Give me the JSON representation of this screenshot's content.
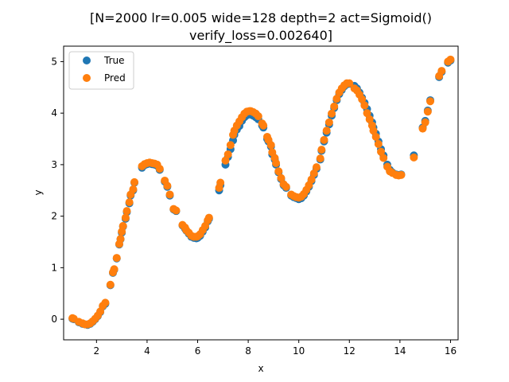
{
  "chart_data": {
    "type": "scatter",
    "title_lines": [
      "[N=2000 lr=0.005 wide=128 depth=2 act=Sigmoid()",
      "verify_loss=0.002640]"
    ],
    "xlabel": "x",
    "ylabel": "y",
    "xlim": [
      0.7,
      16.3
    ],
    "ylim": [
      -0.4,
      5.3
    ],
    "xticks": [
      2,
      4,
      6,
      8,
      10,
      12,
      14,
      16
    ],
    "yticks": [
      0,
      1,
      2,
      3,
      4,
      5
    ],
    "grid": false,
    "legend_position": "upper-left",
    "series": [
      {
        "name": "True",
        "color": "#1f77b4",
        "points": [
          [
            1.05,
            0.01
          ],
          [
            1.1,
            0.0
          ],
          [
            1.3,
            -0.06
          ],
          [
            1.45,
            -0.09
          ],
          [
            1.55,
            -0.1
          ],
          [
            1.65,
            -0.11
          ],
          [
            1.75,
            -0.09
          ],
          [
            1.85,
            -0.05
          ],
          [
            1.95,
            0.0
          ],
          [
            2.05,
            0.06
          ],
          [
            2.15,
            0.14
          ],
          [
            2.25,
            0.25
          ],
          [
            2.35,
            0.3
          ],
          [
            2.55,
            0.66
          ],
          [
            2.65,
            0.9
          ],
          [
            2.7,
            0.96
          ],
          [
            2.8,
            1.18
          ],
          [
            2.9,
            1.45
          ],
          [
            2.95,
            1.55
          ],
          [
            3.0,
            1.68
          ],
          [
            3.05,
            1.8
          ],
          [
            3.15,
            1.95
          ],
          [
            3.2,
            2.08
          ],
          [
            3.3,
            2.25
          ],
          [
            3.35,
            2.4
          ],
          [
            3.45,
            2.5
          ],
          [
            3.5,
            2.65
          ],
          [
            3.8,
            2.94
          ],
          [
            3.9,
            2.99
          ],
          [
            4.0,
            3.01
          ],
          [
            4.1,
            3.02
          ],
          [
            4.2,
            3.01
          ],
          [
            4.3,
            3.0
          ],
          [
            4.4,
            2.98
          ],
          [
            4.5,
            2.9
          ],
          [
            4.7,
            2.67
          ],
          [
            4.8,
            2.57
          ],
          [
            4.9,
            2.4
          ],
          [
            5.05,
            2.13
          ],
          [
            5.15,
            2.1
          ],
          [
            5.4,
            1.82
          ],
          [
            5.5,
            1.76
          ],
          [
            5.55,
            1.72
          ],
          [
            5.65,
            1.66
          ],
          [
            5.75,
            1.6
          ],
          [
            5.85,
            1.58
          ],
          [
            5.95,
            1.57
          ],
          [
            6.0,
            1.58
          ],
          [
            6.1,
            1.62
          ],
          [
            6.2,
            1.7
          ],
          [
            6.3,
            1.78
          ],
          [
            6.4,
            1.9
          ],
          [
            6.45,
            1.95
          ],
          [
            6.85,
            2.5
          ],
          [
            6.9,
            2.6
          ],
          [
            7.1,
            3.0
          ],
          [
            7.2,
            3.15
          ],
          [
            7.3,
            3.3
          ],
          [
            7.4,
            3.47
          ],
          [
            7.45,
            3.58
          ],
          [
            7.55,
            3.68
          ],
          [
            7.65,
            3.75
          ],
          [
            7.75,
            3.85
          ],
          [
            7.85,
            3.92
          ],
          [
            7.95,
            3.96
          ],
          [
            8.05,
            3.98
          ],
          [
            8.1,
            3.97
          ],
          [
            8.2,
            3.95
          ],
          [
            8.3,
            3.92
          ],
          [
            8.4,
            3.88
          ],
          [
            8.55,
            3.76
          ],
          [
            8.6,
            3.72
          ],
          [
            8.75,
            3.5
          ],
          [
            8.8,
            3.45
          ],
          [
            8.9,
            3.35
          ],
          [
            8.95,
            3.2
          ],
          [
            9.05,
            3.1
          ],
          [
            9.1,
            3.0
          ],
          [
            9.2,
            2.85
          ],
          [
            9.3,
            2.72
          ],
          [
            9.4,
            2.6
          ],
          [
            9.5,
            2.55
          ],
          [
            9.7,
            2.4
          ],
          [
            9.8,
            2.37
          ],
          [
            9.9,
            2.35
          ],
          [
            10.0,
            2.33
          ],
          [
            10.1,
            2.35
          ],
          [
            10.2,
            2.4
          ],
          [
            10.3,
            2.48
          ],
          [
            10.4,
            2.57
          ],
          [
            10.5,
            2.68
          ],
          [
            10.6,
            2.8
          ],
          [
            10.7,
            2.92
          ],
          [
            10.85,
            3.1
          ],
          [
            10.9,
            3.27
          ],
          [
            11.0,
            3.45
          ],
          [
            11.1,
            3.62
          ],
          [
            11.2,
            3.78
          ],
          [
            11.3,
            3.95
          ],
          [
            11.4,
            4.1
          ],
          [
            11.5,
            4.25
          ],
          [
            11.6,
            4.37
          ],
          [
            11.7,
            4.45
          ],
          [
            11.8,
            4.52
          ],
          [
            11.9,
            4.56
          ],
          [
            12.0,
            4.57
          ],
          [
            12.2,
            4.53
          ],
          [
            12.3,
            4.48
          ],
          [
            12.4,
            4.4
          ],
          [
            12.5,
            4.3
          ],
          [
            12.6,
            4.2
          ],
          [
            12.7,
            4.08
          ],
          [
            12.8,
            3.95
          ],
          [
            12.9,
            3.82
          ],
          [
            12.95,
            3.72
          ],
          [
            13.05,
            3.6
          ],
          [
            13.15,
            3.45
          ],
          [
            13.25,
            3.3
          ],
          [
            13.35,
            3.18
          ],
          [
            13.5,
            3.0
          ],
          [
            13.6,
            2.9
          ],
          [
            13.7,
            2.85
          ],
          [
            13.85,
            2.81
          ],
          [
            13.95,
            2.8
          ],
          [
            14.05,
            2.81
          ],
          [
            14.55,
            3.18
          ],
          [
            14.9,
            3.72
          ],
          [
            15.0,
            3.85
          ],
          [
            15.1,
            4.05
          ],
          [
            15.2,
            4.25
          ],
          [
            15.55,
            4.7
          ],
          [
            15.65,
            4.8
          ],
          [
            15.9,
            4.98
          ],
          [
            16.0,
            5.02
          ]
        ]
      },
      {
        "name": "Pred",
        "color": "#ff7f0e",
        "points": [
          [
            1.05,
            0.02
          ],
          [
            1.1,
            0.01
          ],
          [
            1.3,
            -0.05
          ],
          [
            1.45,
            -0.08
          ],
          [
            1.55,
            -0.1
          ],
          [
            1.65,
            -0.1
          ],
          [
            1.75,
            -0.08
          ],
          [
            1.85,
            -0.04
          ],
          [
            1.95,
            0.01
          ],
          [
            2.05,
            0.07
          ],
          [
            2.15,
            0.15
          ],
          [
            2.25,
            0.26
          ],
          [
            2.35,
            0.32
          ],
          [
            2.55,
            0.67
          ],
          [
            2.65,
            0.91
          ],
          [
            2.7,
            0.97
          ],
          [
            2.8,
            1.19
          ],
          [
            2.9,
            1.46
          ],
          [
            2.95,
            1.56
          ],
          [
            3.0,
            1.7
          ],
          [
            3.05,
            1.81
          ],
          [
            3.15,
            1.97
          ],
          [
            3.2,
            2.1
          ],
          [
            3.3,
            2.27
          ],
          [
            3.35,
            2.42
          ],
          [
            3.45,
            2.52
          ],
          [
            3.5,
            2.66
          ],
          [
            3.8,
            2.97
          ],
          [
            3.9,
            3.01
          ],
          [
            4.0,
            3.03
          ],
          [
            4.1,
            3.04
          ],
          [
            4.2,
            3.03
          ],
          [
            4.3,
            3.02
          ],
          [
            4.4,
            3.0
          ],
          [
            4.5,
            2.92
          ],
          [
            4.7,
            2.69
          ],
          [
            4.8,
            2.59
          ],
          [
            4.9,
            2.42
          ],
          [
            5.05,
            2.14
          ],
          [
            5.15,
            2.11
          ],
          [
            5.4,
            1.83
          ],
          [
            5.5,
            1.78
          ],
          [
            5.55,
            1.73
          ],
          [
            5.65,
            1.68
          ],
          [
            5.75,
            1.62
          ],
          [
            5.85,
            1.6
          ],
          [
            5.95,
            1.6
          ],
          [
            6.0,
            1.61
          ],
          [
            6.1,
            1.65
          ],
          [
            6.2,
            1.73
          ],
          [
            6.3,
            1.81
          ],
          [
            6.4,
            1.92
          ],
          [
            6.45,
            1.97
          ],
          [
            6.85,
            2.55
          ],
          [
            6.9,
            2.65
          ],
          [
            7.1,
            3.08
          ],
          [
            7.2,
            3.2
          ],
          [
            7.3,
            3.38
          ],
          [
            7.4,
            3.58
          ],
          [
            7.45,
            3.66
          ],
          [
            7.55,
            3.76
          ],
          [
            7.65,
            3.84
          ],
          [
            7.75,
            3.92
          ],
          [
            7.85,
            3.99
          ],
          [
            7.95,
            4.03
          ],
          [
            8.05,
            4.04
          ],
          [
            8.1,
            4.04
          ],
          [
            8.2,
            4.02
          ],
          [
            8.3,
            3.99
          ],
          [
            8.4,
            3.94
          ],
          [
            8.55,
            3.8
          ],
          [
            8.6,
            3.76
          ],
          [
            8.75,
            3.54
          ],
          [
            8.8,
            3.48
          ],
          [
            8.9,
            3.38
          ],
          [
            8.95,
            3.24
          ],
          [
            9.05,
            3.13
          ],
          [
            9.1,
            3.03
          ],
          [
            9.2,
            2.87
          ],
          [
            9.3,
            2.74
          ],
          [
            9.4,
            2.62
          ],
          [
            9.5,
            2.57
          ],
          [
            9.7,
            2.42
          ],
          [
            9.8,
            2.39
          ],
          [
            9.9,
            2.37
          ],
          [
            10.0,
            2.36
          ],
          [
            10.1,
            2.38
          ],
          [
            10.2,
            2.43
          ],
          [
            10.3,
            2.51
          ],
          [
            10.4,
            2.6
          ],
          [
            10.5,
            2.71
          ],
          [
            10.6,
            2.83
          ],
          [
            10.7,
            2.95
          ],
          [
            10.85,
            3.12
          ],
          [
            10.9,
            3.29
          ],
          [
            11.0,
            3.48
          ],
          [
            11.1,
            3.66
          ],
          [
            11.2,
            3.82
          ],
          [
            11.3,
            3.99
          ],
          [
            11.4,
            4.13
          ],
          [
            11.5,
            4.28
          ],
          [
            11.6,
            4.4
          ],
          [
            11.7,
            4.48
          ],
          [
            11.8,
            4.54
          ],
          [
            11.9,
            4.58
          ],
          [
            12.0,
            4.58
          ],
          [
            12.2,
            4.48
          ],
          [
            12.3,
            4.44
          ],
          [
            12.4,
            4.36
          ],
          [
            12.5,
            4.27
          ],
          [
            12.6,
            4.15
          ],
          [
            12.7,
            4.0
          ],
          [
            12.8,
            3.88
          ],
          [
            12.9,
            3.76
          ],
          [
            12.95,
            3.66
          ],
          [
            13.05,
            3.54
          ],
          [
            13.15,
            3.4
          ],
          [
            13.25,
            3.25
          ],
          [
            13.35,
            3.13
          ],
          [
            13.5,
            2.96
          ],
          [
            13.6,
            2.87
          ],
          [
            13.7,
            2.84
          ],
          [
            13.85,
            2.8
          ],
          [
            13.95,
            2.79
          ],
          [
            14.05,
            2.8
          ],
          [
            14.55,
            3.14
          ],
          [
            14.9,
            3.7
          ],
          [
            15.0,
            3.82
          ],
          [
            15.1,
            4.03
          ],
          [
            15.2,
            4.23
          ],
          [
            15.55,
            4.72
          ],
          [
            15.65,
            4.82
          ],
          [
            15.9,
            5.0
          ],
          [
            16.0,
            5.04
          ]
        ]
      }
    ]
  }
}
